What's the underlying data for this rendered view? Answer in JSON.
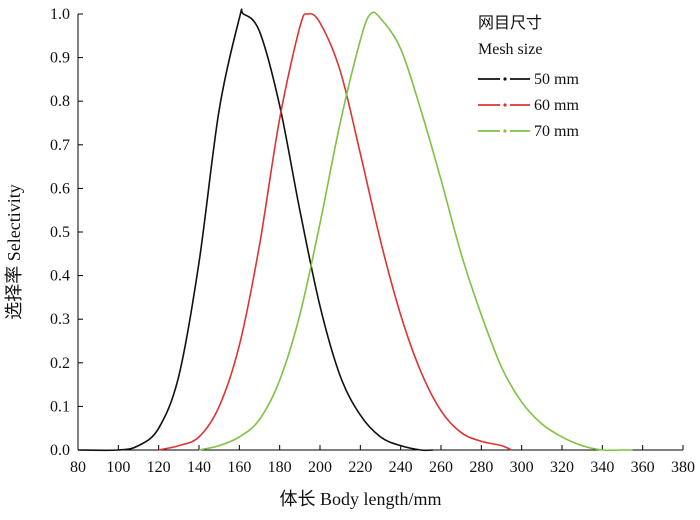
{
  "chart_data": {
    "type": "line",
    "title": "",
    "xlabel": "体长 Body length/mm",
    "ylabel": "选择率 Selectivity",
    "xlim": [
      80,
      380
    ],
    "ylim": [
      0.0,
      1.0
    ],
    "xticks": [
      "80",
      "100",
      "120",
      "140",
      "160",
      "180",
      "200",
      "220",
      "240",
      "260",
      "280",
      "300",
      "320",
      "340",
      "360",
      "380"
    ],
    "yticks": [
      "0.0",
      "0.1",
      "0.2",
      "0.3",
      "0.4",
      "0.5",
      "0.6",
      "0.7",
      "0.8",
      "0.9",
      "1.0"
    ],
    "grid": false,
    "legend": {
      "placement": "top-right",
      "title_cn": "网目尺寸",
      "title_en": "Mesh size"
    },
    "series": [
      {
        "name": "50 mm",
        "color": "#111111",
        "x": [
          80,
          100,
          110,
          120,
          130,
          140,
          150,
          160,
          162,
          170,
          180,
          190,
          200,
          210,
          220,
          230,
          240,
          250,
          256
        ],
        "y": [
          0.0,
          0.0,
          0.01,
          0.05,
          0.17,
          0.43,
          0.78,
          0.99,
          1.0,
          0.96,
          0.79,
          0.55,
          0.33,
          0.17,
          0.08,
          0.03,
          0.01,
          0.0,
          0.0
        ]
      },
      {
        "name": "60 mm",
        "color": "#e03232",
        "x": [
          120,
          130,
          140,
          150,
          160,
          170,
          180,
          190,
          194,
          200,
          210,
          220,
          230,
          240,
          250,
          260,
          270,
          280,
          290,
          295
        ],
        "y": [
          0.0,
          0.01,
          0.03,
          0.1,
          0.24,
          0.47,
          0.76,
          0.97,
          1.0,
          0.98,
          0.87,
          0.68,
          0.48,
          0.31,
          0.18,
          0.09,
          0.04,
          0.02,
          0.01,
          0.0
        ]
      },
      {
        "name": "70 mm",
        "color": "#7dc242",
        "x": [
          140,
          150,
          160,
          170,
          180,
          190,
          200,
          210,
          220,
          225,
          230,
          240,
          250,
          260,
          270,
          280,
          290,
          300,
          310,
          320,
          330,
          340,
          350,
          355
        ],
        "y": [
          0.0,
          0.01,
          0.03,
          0.07,
          0.16,
          0.31,
          0.52,
          0.75,
          0.94,
          1.0,
          0.99,
          0.92,
          0.78,
          0.62,
          0.45,
          0.31,
          0.19,
          0.11,
          0.06,
          0.03,
          0.01,
          0.0,
          0.0,
          0.0
        ]
      }
    ]
  }
}
